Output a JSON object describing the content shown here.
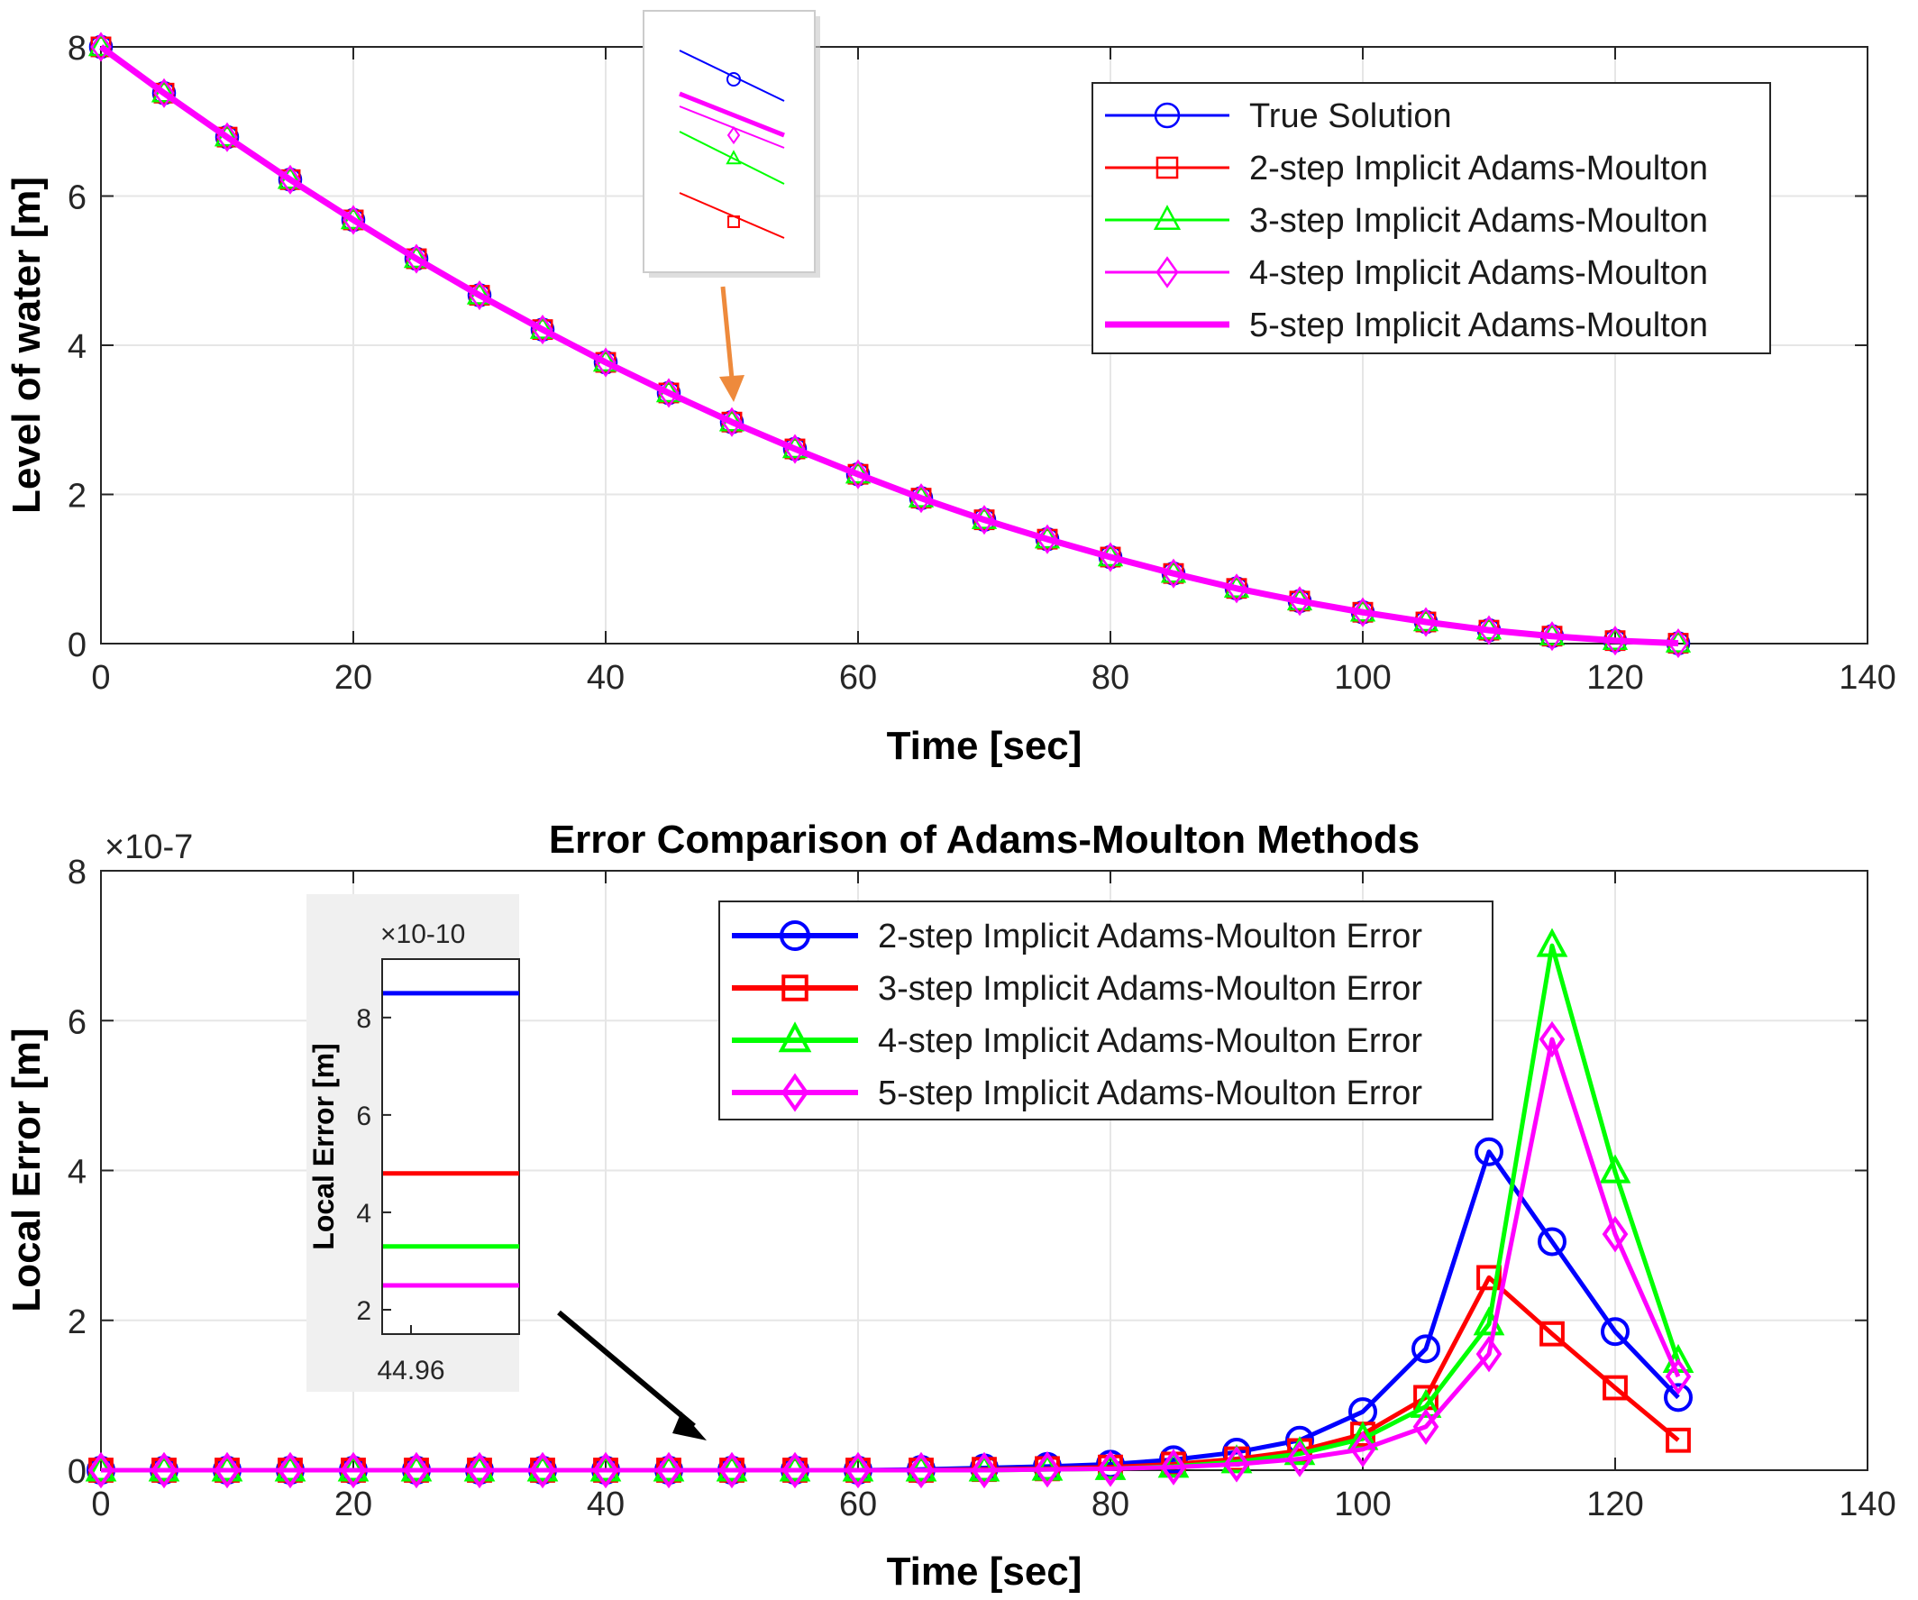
{
  "colors": {
    "blue": "#0000ff",
    "red": "#ff0000",
    "green": "#00ff00",
    "magenta": "#ff00ff",
    "axis": "#262626",
    "grid": "#e6e6e6",
    "inset_bg": "#f0f0f0",
    "arrow_orange": "#ee8a3c",
    "arrow_black": "#000000"
  },
  "chart_data": [
    {
      "type": "line",
      "title": "",
      "xlabel": "Time [sec]",
      "ylabel": "Level of water [m]",
      "xlim": [
        0,
        140
      ],
      "ylim": [
        0,
        8
      ],
      "xticks": [
        0,
        20,
        40,
        60,
        80,
        100,
        120,
        140
      ],
      "yticks": [
        0,
        2,
        4,
        6,
        8
      ],
      "grid": true,
      "legend_position": "top-right",
      "x": [
        0,
        5,
        10,
        15,
        20,
        25,
        30,
        35,
        40,
        45,
        50,
        55,
        60,
        65,
        70,
        75,
        80,
        85,
        90,
        95,
        100,
        105,
        110,
        115,
        120,
        125
      ],
      "series": [
        {
          "name": "True Solution",
          "color": "blue",
          "marker": "circle",
          "y": [
            8.0,
            7.38,
            6.79,
            6.22,
            5.68,
            5.16,
            4.67,
            4.21,
            3.77,
            3.36,
            2.97,
            2.61,
            2.27,
            1.95,
            1.66,
            1.4,
            1.16,
            0.94,
            0.74,
            0.57,
            0.42,
            0.29,
            0.18,
            0.1,
            0.04,
            0.005
          ]
        },
        {
          "name": "2-step Implicit Adams-Moulton",
          "color": "red",
          "marker": "square",
          "y": [
            8.0,
            7.38,
            6.79,
            6.22,
            5.68,
            5.16,
            4.67,
            4.21,
            3.77,
            3.36,
            2.97,
            2.61,
            2.27,
            1.95,
            1.66,
            1.4,
            1.16,
            0.94,
            0.74,
            0.57,
            0.42,
            0.29,
            0.18,
            0.1,
            0.04,
            0.005
          ]
        },
        {
          "name": "3-step Implicit Adams-Moulton",
          "color": "green",
          "marker": "triangle",
          "y": [
            8.0,
            7.38,
            6.79,
            6.22,
            5.68,
            5.16,
            4.67,
            4.21,
            3.77,
            3.36,
            2.97,
            2.61,
            2.27,
            1.95,
            1.66,
            1.4,
            1.16,
            0.94,
            0.74,
            0.57,
            0.42,
            0.29,
            0.18,
            0.1,
            0.04,
            0.005
          ]
        },
        {
          "name": "4-step Implicit Adams-Moulton",
          "color": "magenta",
          "marker": "diamond",
          "y": [
            8.0,
            7.38,
            6.79,
            6.22,
            5.68,
            5.16,
            4.67,
            4.21,
            3.77,
            3.36,
            2.97,
            2.61,
            2.27,
            1.95,
            1.66,
            1.4,
            1.16,
            0.94,
            0.74,
            0.57,
            0.42,
            0.29,
            0.18,
            0.1,
            0.04,
            0.005
          ]
        },
        {
          "name": "5-step Implicit Adams-Moulton",
          "color": "magenta",
          "marker": "none",
          "thick": true,
          "y": [
            8.0,
            7.38,
            6.79,
            6.22,
            5.68,
            5.16,
            4.67,
            4.21,
            3.77,
            3.36,
            2.97,
            2.61,
            2.27,
            1.95,
            1.66,
            1.4,
            1.16,
            0.94,
            0.74,
            0.57,
            0.42,
            0.29,
            0.18,
            0.1,
            0.04,
            0.005
          ]
        }
      ],
      "annotation": "zoom inset near t = 50 showing four separated lines (blue circle, magenta, green triangle, red square) with orange arrow"
    },
    {
      "type": "line",
      "title": "Error Comparison of Adams-Moulton Methods",
      "xlabel": "Time [sec]",
      "ylabel": "Local Error [m]",
      "yexponent": "×10-7",
      "xlim": [
        0,
        140
      ],
      "ylim": [
        0,
        8
      ],
      "xticks": [
        0,
        20,
        40,
        60,
        80,
        100,
        120,
        140
      ],
      "yticks": [
        0,
        2,
        4,
        6,
        8
      ],
      "grid": true,
      "legend_position": "top-center",
      "x": [
        0,
        5,
        10,
        15,
        20,
        25,
        30,
        35,
        40,
        45,
        50,
        55,
        60,
        65,
        70,
        75,
        80,
        85,
        90,
        95,
        100,
        105,
        110,
        115,
        120,
        125
      ],
      "series": [
        {
          "name": "2-step Implicit Adams-Moulton Error",
          "color": "blue",
          "marker": "circle",
          "y": [
            0,
            0,
            0,
            0,
            0,
            0,
            0,
            0,
            0,
            0,
            0,
            0,
            0,
            0.01,
            0.03,
            0.05,
            0.08,
            0.14,
            0.24,
            0.4,
            0.78,
            1.62,
            4.25,
            3.05,
            1.85,
            0.97
          ]
        },
        {
          "name": "3-step Implicit Adams-Moulton Error",
          "color": "red",
          "marker": "square",
          "y": [
            0,
            0,
            0,
            0,
            0,
            0,
            0,
            0,
            0,
            0,
            0,
            0,
            0,
            0,
            0.01,
            0.02,
            0.04,
            0.08,
            0.15,
            0.26,
            0.48,
            0.97,
            2.57,
            1.82,
            1.1,
            0.4
          ]
        },
        {
          "name": "4-step Implicit Adams-Moulton Error",
          "color": "green",
          "marker": "triangle",
          "y": [
            0,
            0,
            0,
            0,
            0,
            0,
            0,
            0,
            0,
            0,
            0,
            0,
            0,
            0,
            0,
            0.01,
            0.02,
            0.05,
            0.11,
            0.22,
            0.42,
            0.85,
            1.95,
            7.0,
            3.98,
            1.45
          ]
        },
        {
          "name": "5-step Implicit Adams-Moulton Error",
          "color": "magenta",
          "marker": "diamond",
          "y": [
            0,
            0,
            0,
            0,
            0,
            0,
            0,
            0,
            0,
            0,
            0,
            0,
            0,
            0,
            0,
            0.01,
            0.02,
            0.04,
            0.08,
            0.15,
            0.28,
            0.58,
            1.55,
            5.75,
            3.15,
            1.25
          ]
        }
      ],
      "inset": {
        "ylabel": "Local Error [m]",
        "yexponent": "×10-10",
        "xtick": "44.96",
        "yticks": [
          2,
          4,
          6,
          8
        ],
        "ylim": [
          1.5,
          9.2
        ],
        "levels": [
          {
            "color": "blue",
            "value": 8.5
          },
          {
            "color": "red",
            "value": 4.8
          },
          {
            "color": "green",
            "value": 3.3
          },
          {
            "color": "magenta",
            "value": 2.5
          }
        ]
      }
    }
  ]
}
